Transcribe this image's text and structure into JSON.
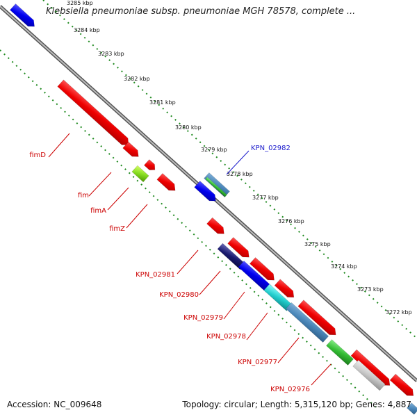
{
  "title": "Klebsiella pneumoniae subsp. pneumoniae MGH 78578, complete ...",
  "footer": {
    "accession": "Accession: NC_009648",
    "info": "Topology: circular; Length: 5,315,120 bp; Genes: 4,887"
  },
  "ruler": [
    {
      "label": "3285 kbp",
      "kbp": 3285
    },
    {
      "label": "3284 kbp",
      "kbp": 3284
    },
    {
      "label": "3283 kbp",
      "kbp": 3283
    },
    {
      "label": "3282 kbp",
      "kbp": 3282
    },
    {
      "label": "3281 kbp",
      "kbp": 3281
    },
    {
      "label": "3280 kbp",
      "kbp": 3280
    },
    {
      "label": "3279 kbp",
      "kbp": 3279
    },
    {
      "label": "3278 kbp",
      "kbp": 3278
    },
    {
      "label": "3277 kbp",
      "kbp": 3277
    },
    {
      "label": "3276 kbp",
      "kbp": 3276
    },
    {
      "label": "3275 kbp",
      "kbp": 3275
    },
    {
      "label": "3274 kbp",
      "kbp": 3274
    },
    {
      "label": "3273 kbp",
      "kbp": 3273
    },
    {
      "label": "3272 kbp",
      "kbp": 3272
    }
  ],
  "gene_labels": [
    {
      "text": "KPN_02982",
      "color": "#1a1acc"
    },
    {
      "text": "fimD",
      "color": "#cc0000"
    },
    {
      "text": "fim",
      "color": "#cc0000"
    },
    {
      "text": "fimA",
      "color": "#cc0000"
    },
    {
      "text": "fimZ",
      "color": "#cc0000"
    },
    {
      "text": "KPN_02981",
      "color": "#cc0000"
    },
    {
      "text": "KPN_02980",
      "color": "#cc0000"
    },
    {
      "text": "KPN_02979",
      "color": "#cc0000"
    },
    {
      "text": "KPN_02978",
      "color": "#cc0000"
    },
    {
      "text": "KPN_02977",
      "color": "#cc0000"
    },
    {
      "text": "KPN_02976",
      "color": "#cc0000"
    }
  ],
  "colors": {
    "cds_forward": "#ee0000",
    "gene_blue": "#0000ee",
    "steel_blue": "#4a86b8",
    "green": "#33bb33",
    "lime": "#88dd22",
    "cyan": "#22cccc",
    "navy": "#1a1a6e",
    "gray_feature": "#c8c8c8",
    "backbone": "#888888"
  }
}
